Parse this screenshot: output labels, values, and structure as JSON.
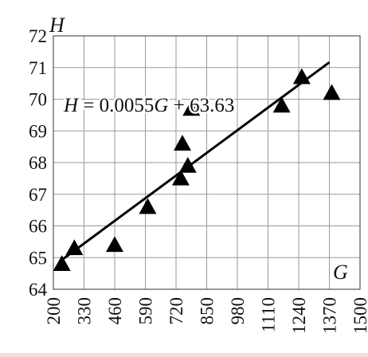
{
  "chart_data": {
    "type": "scatter",
    "title": "",
    "xlabel": "G",
    "ylabel": "H",
    "xlim": [
      200,
      1500
    ],
    "ylim": [
      64,
      72
    ],
    "xticks": [
      "200",
      "330",
      "460",
      "590",
      "720",
      "850",
      "980",
      "1110",
      "1240",
      "1370",
      "1500"
    ],
    "yticks": [
      "64",
      "65",
      "66",
      "67",
      "68",
      "69",
      "70",
      "71",
      "72"
    ],
    "grid": true,
    "marker": "triangle",
    "marker_color": "#000000",
    "series": [
      {
        "points": [
          {
            "x": 236,
            "y": 64.8
          },
          {
            "x": 289,
            "y": 65.3
          },
          {
            "x": 460,
            "y": 65.4
          },
          {
            "x": 600,
            "y": 66.6
          },
          {
            "x": 740,
            "y": 67.5
          },
          {
            "x": 747,
            "y": 68.6
          },
          {
            "x": 770,
            "y": 67.9
          },
          {
            "x": 785,
            "y": 69.7
          },
          {
            "x": 1168,
            "y": 69.8
          },
          {
            "x": 1253,
            "y": 70.7
          },
          {
            "x": 1380,
            "y": 70.2
          }
        ]
      }
    ],
    "trendline": {
      "equation": "H = 0.0055G + 63.63",
      "slope": 0.0055,
      "intercept": 63.63,
      "x_range": [
        236,
        1370
      ]
    }
  }
}
